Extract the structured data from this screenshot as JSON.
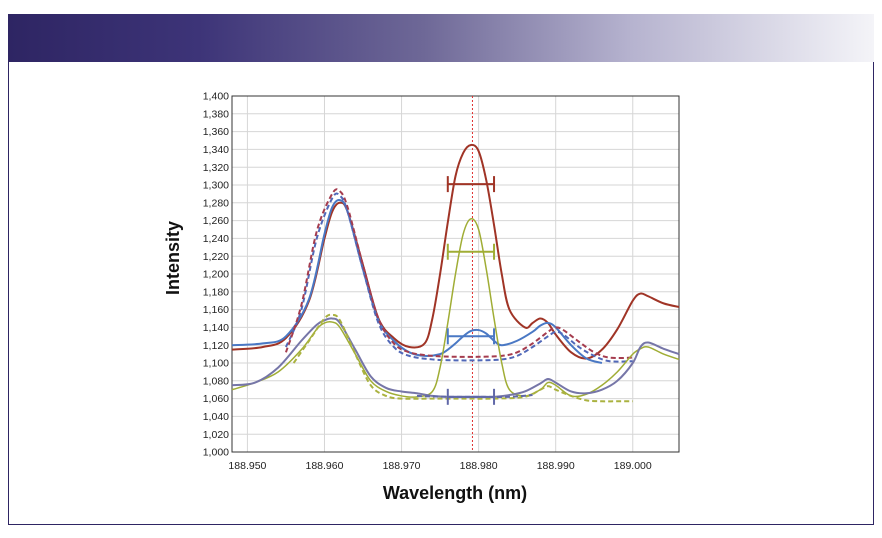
{
  "chart_data": {
    "type": "line",
    "title": "",
    "xlabel": "Wavelength (nm)",
    "ylabel": "Intensity",
    "xlim": [
      188.948,
      189.006
    ],
    "ylim": [
      1000,
      1400
    ],
    "xticks": [
      188.95,
      188.96,
      188.97,
      188.98,
      188.99,
      189.0
    ],
    "xtick_labels": [
      "188.950",
      "188.960",
      "188.970",
      "188.980",
      "188.990",
      "189.000"
    ],
    "yticks": [
      1000,
      1020,
      1040,
      1060,
      1080,
      1100,
      1120,
      1140,
      1160,
      1180,
      1200,
      1220,
      1240,
      1260,
      1280,
      1300,
      1320,
      1340,
      1360,
      1380,
      1400
    ],
    "ytick_labels": [
      "1,000",
      "1,020",
      "1,040",
      "1,060",
      "1,080",
      "1,100",
      "1,120",
      "1,140",
      "1,160",
      "1,180",
      "1,200",
      "1,220",
      "1,240",
      "1,260",
      "1,280",
      "1,300",
      "1,320",
      "1,340",
      "1,360",
      "1,380",
      "1,400"
    ],
    "grid": true,
    "reference_line": {
      "x": 188.9792,
      "color": "#e03030",
      "style": "dotted"
    },
    "series": [
      {
        "name": "dark-red-solid",
        "color": "#a03426",
        "dash": false,
        "width": 2,
        "x": [
          188.948,
          188.952,
          188.955,
          188.958,
          188.96,
          188.961,
          188.962,
          188.963,
          188.965,
          188.967,
          188.969,
          188.971,
          188.973,
          188.974,
          188.975,
          188.976,
          188.977,
          188.978,
          188.979,
          188.98,
          188.981,
          188.982,
          188.983,
          188.984,
          188.986,
          188.987,
          188.988,
          188.989,
          188.99,
          188.992,
          188.994,
          188.996,
          188.998,
          189.0,
          189.001,
          189.002,
          189.004,
          189.006
        ],
        "y": [
          1115,
          1118,
          1128,
          1170,
          1240,
          1270,
          1280,
          1270,
          1210,
          1150,
          1128,
          1118,
          1122,
          1150,
          1200,
          1258,
          1310,
          1336,
          1345,
          1338,
          1305,
          1255,
          1200,
          1160,
          1140,
          1145,
          1150,
          1145,
          1132,
          1112,
          1105,
          1115,
          1138,
          1170,
          1178,
          1175,
          1167,
          1163
        ]
      },
      {
        "name": "blue-solid",
        "color": "#4a78c4",
        "dash": false,
        "width": 2,
        "x": [
          188.948,
          188.952,
          188.955,
          188.958,
          188.96,
          188.961,
          188.962,
          188.963,
          188.965,
          188.967,
          188.969,
          188.971,
          188.973,
          188.975,
          188.976,
          188.977,
          188.978,
          188.979,
          188.98,
          188.981,
          188.982,
          188.983,
          188.985,
          188.987,
          188.988,
          188.989,
          188.99,
          188.992,
          188.994,
          188.996
        ],
        "y": [
          1120,
          1122,
          1130,
          1172,
          1245,
          1275,
          1283,
          1270,
          1205,
          1148,
          1125,
          1112,
          1108,
          1110,
          1115,
          1122,
          1130,
          1136,
          1137,
          1133,
          1125,
          1120,
          1125,
          1135,
          1142,
          1145,
          1140,
          1120,
          1105,
          1100
        ]
      },
      {
        "name": "blue-dashed",
        "color": "#5168b8",
        "dash": true,
        "width": 2,
        "x": [
          188.955,
          188.957,
          188.959,
          188.961,
          188.962,
          188.963,
          188.965,
          188.967,
          188.969,
          188.971,
          188.974,
          188.977,
          188.98,
          188.983,
          188.985,
          188.987,
          188.989,
          188.99,
          188.991,
          188.993,
          188.995,
          188.997,
          189.0
        ],
        "y": [
          1118,
          1160,
          1240,
          1285,
          1288,
          1270,
          1205,
          1145,
          1118,
          1108,
          1104,
          1103,
          1103,
          1104,
          1108,
          1118,
          1130,
          1135,
          1132,
          1118,
          1108,
          1102,
          1102
        ]
      },
      {
        "name": "red-dashed",
        "color": "#a53c4e",
        "dash": true,
        "width": 2,
        "x": [
          188.955,
          188.957,
          188.959,
          188.961,
          188.962,
          188.963,
          188.965,
          188.967,
          188.969,
          188.971,
          188.974,
          188.977,
          188.98,
          188.983,
          188.985,
          188.987,
          188.989,
          188.99,
          188.991,
          188.993,
          188.995,
          188.997,
          189.0
        ],
        "y": [
          1112,
          1165,
          1248,
          1290,
          1293,
          1275,
          1210,
          1150,
          1122,
          1112,
          1108,
          1107,
          1107,
          1108,
          1112,
          1122,
          1135,
          1140,
          1137,
          1124,
          1112,
          1106,
          1106
        ]
      },
      {
        "name": "green-solid",
        "color": "#a0ad35",
        "dash": false,
        "width": 1.5,
        "x": [
          188.948,
          188.951,
          188.954,
          188.957,
          188.959,
          188.96,
          188.961,
          188.962,
          188.964,
          188.966,
          188.968,
          188.97,
          188.972,
          188.974,
          188.975,
          188.976,
          188.977,
          188.978,
          188.979,
          188.98,
          188.981,
          188.982,
          188.983,
          188.984,
          188.986,
          188.988,
          188.989,
          188.99,
          188.992,
          188.994,
          188.996,
          188.998,
          189.0,
          189.001,
          189.002,
          189.004,
          189.006
        ],
        "y": [
          1070,
          1078,
          1090,
          1115,
          1138,
          1145,
          1146,
          1140,
          1110,
          1080,
          1068,
          1063,
          1062,
          1068,
          1095,
          1145,
          1200,
          1245,
          1262,
          1250,
          1205,
          1150,
          1100,
          1070,
          1063,
          1070,
          1078,
          1075,
          1063,
          1065,
          1075,
          1090,
          1110,
          1116,
          1118,
          1110,
          1104
        ]
      },
      {
        "name": "purple-solid",
        "color": "#7676a8",
        "dash": false,
        "width": 2,
        "x": [
          188.948,
          188.951,
          188.954,
          188.957,
          188.959,
          188.96,
          188.961,
          188.962,
          188.964,
          188.966,
          188.968,
          188.97,
          188.972,
          188.974,
          188.976,
          188.978,
          188.98,
          188.982,
          188.984,
          188.986,
          188.988,
          188.989,
          188.99,
          188.992,
          188.994,
          188.996,
          188.998,
          189.0,
          189.001,
          189.002,
          189.004,
          189.006
        ],
        "y": [
          1075,
          1078,
          1095,
          1125,
          1143,
          1148,
          1150,
          1145,
          1115,
          1085,
          1072,
          1068,
          1066,
          1063,
          1062,
          1062,
          1062,
          1062,
          1064,
          1068,
          1077,
          1082,
          1078,
          1068,
          1066,
          1070,
          1080,
          1100,
          1118,
          1123,
          1116,
          1110
        ]
      },
      {
        "name": "yellow-green-dashed",
        "color": "#aab240",
        "dash": true,
        "width": 2,
        "x": [
          188.956,
          188.958,
          188.96,
          188.961,
          188.962,
          188.964,
          188.966,
          188.968,
          188.97,
          188.974,
          188.978,
          188.982,
          188.986,
          188.988,
          188.989,
          188.99,
          188.992,
          188.994,
          188.996,
          188.998,
          189.0
        ],
        "y": [
          1100,
          1125,
          1150,
          1154,
          1148,
          1110,
          1075,
          1063,
          1060,
          1060,
          1060,
          1060,
          1062,
          1070,
          1074,
          1070,
          1063,
          1058,
          1057,
          1057,
          1057
        ]
      },
      {
        "name": "slate-dashed",
        "color": "#6068a8",
        "dash": true,
        "width": 2,
        "x": [
          188.972,
          188.976,
          188.98,
          188.984,
          188.987
        ],
        "y": [
          1063,
          1062,
          1062,
          1062,
          1064
        ]
      }
    ],
    "error_bars": [
      {
        "color": "#a03426",
        "x_center": 188.979,
        "x_low": 188.976,
        "x_high": 188.982,
        "y": 1301
      },
      {
        "color": "#a0ad35",
        "x_center": 188.979,
        "x_low": 188.976,
        "x_high": 188.982,
        "y": 1225
      },
      {
        "color": "#4a78c4",
        "x_center": 188.979,
        "x_low": 188.976,
        "x_high": 188.982,
        "y": 1130
      },
      {
        "color": "#6068a8",
        "x_center": 188.979,
        "x_low": 188.976,
        "x_high": 188.982,
        "y": 1062
      }
    ]
  }
}
